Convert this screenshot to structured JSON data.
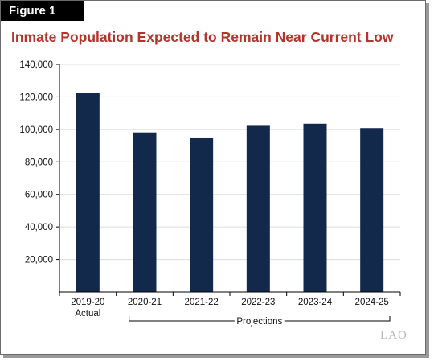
{
  "figure_label": "Figure 1",
  "chart_data": {
    "type": "bar",
    "title": "Inmate Population Expected to Remain Near Current Low",
    "categories": [
      "2019-20",
      "2020-21",
      "2021-22",
      "2022-23",
      "2023-24",
      "2024-25"
    ],
    "category_sublabels": [
      "Actual",
      "",
      "",
      "",
      "",
      ""
    ],
    "values": [
      122400,
      98100,
      95000,
      102200,
      103500,
      100800
    ],
    "yticks": [
      20000,
      40000,
      60000,
      80000,
      100000,
      120000,
      140000
    ],
    "ytick_labels": [
      "20,000",
      "40,000",
      "60,000",
      "80,000",
      "100,000",
      "120,000",
      "140,000"
    ],
    "ylim": [
      0,
      140000
    ],
    "xlabel": "",
    "ylabel": "",
    "grid": true,
    "bar_color": "#13294b",
    "bracket_label": "Projections",
    "bracket_categories": [
      "2020-21",
      "2024-25"
    ]
  },
  "logo_text": "LAO"
}
